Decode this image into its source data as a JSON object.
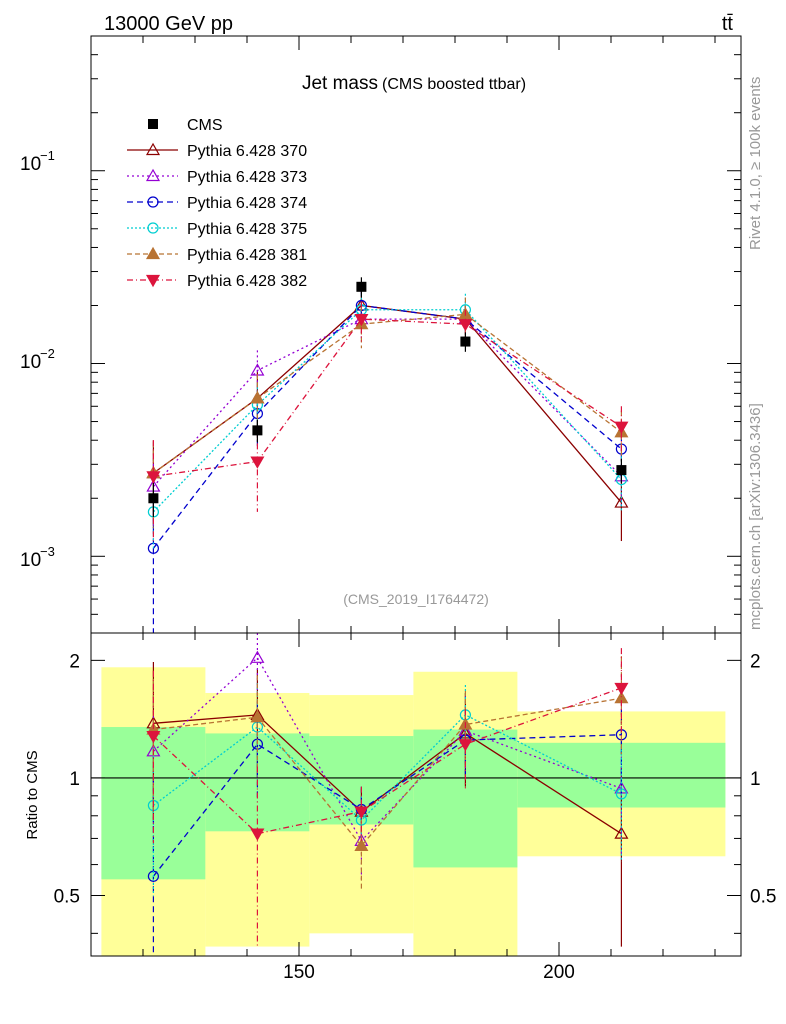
{
  "header": {
    "energy_label": "13000 GeV pp",
    "process_label": "tt̄"
  },
  "side_labels": {
    "rivet": "Rivet 4.1.0, ≥ 100k events",
    "site": "mcplots.cern.ch [arXiv:1306.3436]"
  },
  "chart_data": {
    "type": "line",
    "title": "Jet mass",
    "subtitle": "(CMS boosted ttbar)",
    "analysis_id": "(CMS_2019_I1764472)",
    "xlabel": "",
    "ylabel_ratio": "Ratio to CMS",
    "xlim": [
      110,
      235
    ],
    "ylim_main": [
      0.0004,
      0.5
    ],
    "ylim_ratio": [
      0.35,
      2.35
    ],
    "x_ticks": [
      150,
      200
    ],
    "y_ticks_main": [
      "10^-3",
      "10^-2",
      "10^-1"
    ],
    "y_ticks_ratio": [
      0.5,
      1,
      2
    ],
    "x": [
      122,
      142,
      162,
      182,
      212
    ],
    "data": {
      "name": "CMS",
      "values": [
        0.002,
        0.0045,
        0.025,
        0.013,
        0.0028
      ],
      "errors": [
        0.0004,
        0.0006,
        0.003,
        0.0015,
        0.0004
      ]
    },
    "bands": [
      {
        "x0": 112,
        "x1": 132,
        "inner": [
          0.55,
          1.35
        ],
        "outer": [
          0.28,
          1.92
        ]
      },
      {
        "x0": 132,
        "x1": 152,
        "inner": [
          0.73,
          1.3
        ],
        "outer": [
          0.37,
          1.65
        ]
      },
      {
        "x0": 152,
        "x1": 172,
        "inner": [
          0.76,
          1.28
        ],
        "outer": [
          0.4,
          1.63
        ]
      },
      {
        "x0": 172,
        "x1": 192,
        "inner": [
          0.59,
          1.33
        ],
        "outer": [
          0.27,
          1.87
        ]
      },
      {
        "x0": 192,
        "x1": 232,
        "inner": [
          0.84,
          1.23
        ],
        "outer": [
          0.63,
          1.48
        ]
      }
    ],
    "series": [
      {
        "name": "Pythia 6.428 370",
        "color": "#8b0000",
        "dash": "",
        "marker": "triangle-open",
        "values": [
          0.0027,
          0.0066,
          0.02,
          0.017,
          0.0019
        ],
        "errors": [
          0.0013,
          0.0025,
          0.004,
          0.003,
          0.0007
        ],
        "ratio": [
          1.38,
          1.45,
          0.82,
          1.3,
          0.72
        ],
        "ratio_err": [
          0.6,
          0.45,
          0.12,
          0.35,
          0.35
        ]
      },
      {
        "name": "Pythia 6.428 373",
        "color": "#9400d3",
        "dash": "2,3",
        "marker": "triangle-open",
        "values": [
          0.0023,
          0.0092,
          0.017,
          0.017,
          0.0026
        ],
        "errors": [
          0.0009,
          0.0025,
          0.004,
          0.004,
          0.0008
        ],
        "ratio": [
          1.17,
          2.03,
          0.69,
          1.32,
          0.94
        ],
        "ratio_err": [
          0.45,
          0.4,
          0.15,
          0.3,
          0.3
        ]
      },
      {
        "name": "Pythia 6.428 374",
        "color": "#0000cd",
        "dash": "6,4",
        "marker": "circle-open",
        "values": [
          0.0011,
          0.0055,
          0.02,
          0.017,
          0.0036
        ],
        "errors": [
          0.0009,
          0.0018,
          0.004,
          0.003,
          0.0012
        ],
        "ratio": [
          0.56,
          1.22,
          0.83,
          1.25,
          1.29
        ],
        "ratio_err": [
          0.45,
          0.35,
          0.12,
          0.25,
          0.4
        ]
      },
      {
        "name": "Pythia 6.428 375",
        "color": "#00ced1",
        "dash": "2,2",
        "marker": "circle-open",
        "values": [
          0.0017,
          0.0061,
          0.019,
          0.019,
          0.0025
        ],
        "errors": [
          0.0006,
          0.0018,
          0.004,
          0.004,
          0.0008
        ],
        "ratio": [
          0.85,
          1.35,
          0.78,
          1.45,
          0.91
        ],
        "ratio_err": [
          0.35,
          0.4,
          0.12,
          0.28,
          0.3
        ]
      },
      {
        "name": "Pythia 6.428 381",
        "color": "#b87333",
        "dash": "5,3",
        "marker": "triangle-filled",
        "values": [
          0.0027,
          0.0066,
          0.016,
          0.018,
          0.0044
        ],
        "errors": [
          0.0012,
          0.0022,
          0.004,
          0.004,
          0.0013
        ],
        "ratio": [
          1.33,
          1.43,
          0.67,
          1.37,
          1.6
        ],
        "ratio_err": [
          0.55,
          0.4,
          0.15,
          0.3,
          0.45
        ]
      },
      {
        "name": "Pythia 6.428 382",
        "color": "#dc143c",
        "dash": "6,3,1,3",
        "marker": "triangle-down-filled",
        "values": [
          0.0026,
          0.0031,
          0.017,
          0.016,
          0.0047
        ],
        "errors": [
          0.0014,
          0.0014,
          0.004,
          0.003,
          0.0013
        ],
        "ratio": [
          1.28,
          0.72,
          0.82,
          1.22,
          1.7
        ],
        "ratio_err": [
          0.6,
          0.35,
          0.13,
          0.28,
          0.45
        ]
      }
    ]
  }
}
